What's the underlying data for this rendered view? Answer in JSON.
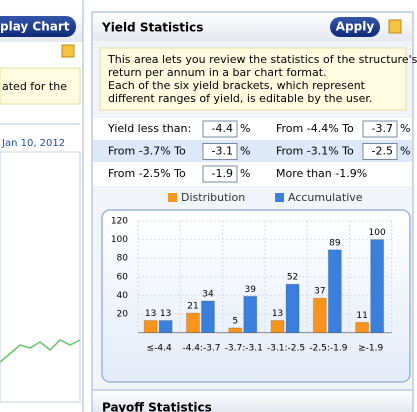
{
  "left_panel": {
    "button": "play Chart",
    "note": "ated for the",
    "date": "Jan 10, 2012"
  },
  "panel": {
    "title": "Yield Statistics",
    "button": "Apply",
    "description": [
      "This area lets you review the statistics of the structure's",
      "return per annum in a bar chart format.",
      "Each of the six yield brackets, which represent",
      "different ranges of yield, is editable by the user."
    ],
    "fields": [
      {
        "label": "Yield less than:",
        "value": "-4.4",
        "unit": "%"
      },
      {
        "label": "From -4.4% To",
        "value": "-3.7",
        "unit": "%"
      },
      {
        "label": "From -3.7% To",
        "value": "-3.1",
        "unit": "%"
      },
      {
        "label": "From -3.1% To",
        "value": "-2.5",
        "unit": "%"
      },
      {
        "label": "From -2.5% To",
        "value": "-1.9",
        "unit": "%"
      },
      {
        "label": "More than -1.9%"
      }
    ],
    "next_section": "Payoff Statistics"
  },
  "chart_data": {
    "type": "bar",
    "categories": [
      "≤-4.4",
      "-4.4:-3.7",
      "-3.7:-3.1",
      "-3.1:-2.5",
      "-2.5:-1.9",
      "≥-1.9"
    ],
    "series": [
      {
        "name": "Distribution",
        "color": "#f7941d",
        "values": [
          13,
          21,
          5,
          13,
          37,
          11
        ]
      },
      {
        "name": "Accumulative",
        "color": "#3b7fdc",
        "values": [
          13,
          34,
          39,
          52,
          89,
          100
        ]
      }
    ],
    "ylim": [
      0,
      120
    ],
    "yticks": [
      20,
      40,
      60,
      80,
      100,
      120
    ],
    "legend": "top",
    "grid": true
  }
}
